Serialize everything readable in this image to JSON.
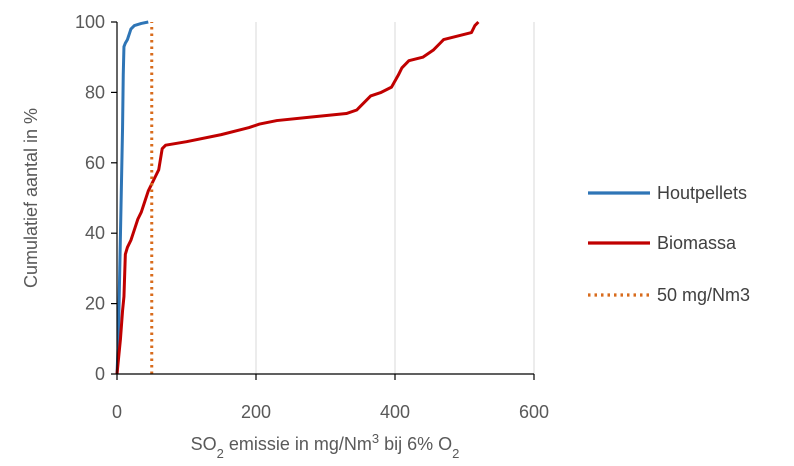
{
  "chart_data": {
    "type": "line",
    "xlabel": {
      "parts": [
        {
          "text": "SO",
          "sub": false,
          "sup": false
        },
        {
          "text": "2",
          "sub": true,
          "sup": false
        },
        {
          "text": " emissie in mg/Nm",
          "sub": false,
          "sup": false
        },
        {
          "text": "3",
          "sub": false,
          "sup": true
        },
        {
          "text": " bij 6% O",
          "sub": false,
          "sup": false
        },
        {
          "text": "2",
          "sub": true,
          "sup": false
        }
      ]
    },
    "ylabel": "Cumulatief aantal in %",
    "xlim": [
      0,
      600
    ],
    "ylim": [
      0,
      100
    ],
    "xticks": [
      0,
      200,
      400,
      600
    ],
    "yticks": [
      0,
      20,
      40,
      60,
      80,
      100
    ],
    "xtick_labels": [
      "0",
      "200",
      "400",
      "600"
    ],
    "ytick_labels": [
      "0",
      "20",
      "40",
      "60",
      "80",
      "100"
    ],
    "grid": "vertical",
    "legend_position": "right",
    "series": [
      {
        "name": "Houtpellets",
        "color": "#2E75B6",
        "style": "solid",
        "x": [
          0,
          2,
          4,
          6,
          8,
          9,
          10,
          12,
          15,
          20,
          25,
          35,
          45
        ],
        "y": [
          0,
          10,
          30,
          50,
          70,
          85,
          93,
          94,
          95,
          98,
          99,
          99.6,
          100
        ]
      },
      {
        "name": "Biomassa",
        "color": "#C00000",
        "style": "solid",
        "x": [
          0,
          5,
          8,
          10,
          12,
          15,
          20,
          25,
          30,
          35,
          40,
          45,
          50,
          55,
          60,
          65,
          70,
          100,
          150,
          190,
          205,
          230,
          280,
          330,
          345,
          350,
          355,
          365,
          380,
          395,
          405,
          410,
          420,
          440,
          455,
          465,
          470,
          490,
          510,
          515,
          520
        ],
        "y": [
          0,
          10,
          18,
          22,
          34,
          36,
          38,
          41,
          44,
          46,
          49,
          52,
          54,
          56,
          58,
          64,
          65,
          66,
          68,
          70,
          71,
          72,
          73,
          74,
          75,
          76,
          77,
          79,
          80,
          81.5,
          85,
          87,
          89,
          90,
          92,
          94,
          95,
          96,
          97,
          99,
          100
        ]
      },
      {
        "name": "50 mg/Nm3",
        "color": "#D86B1C",
        "style": "dotted",
        "x": [
          50,
          50
        ],
        "y": [
          0,
          100
        ]
      }
    ]
  }
}
